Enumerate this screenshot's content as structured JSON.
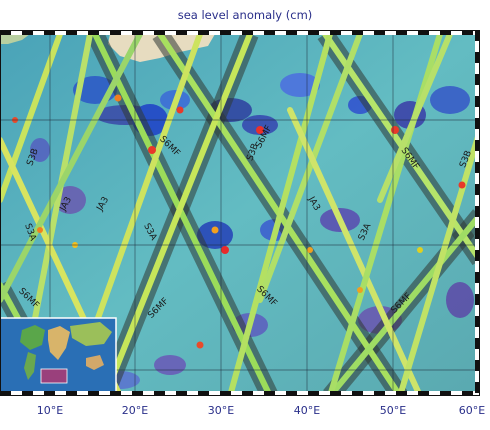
{
  "title": "sea level anomaly (cm)",
  "colors": {
    "ocean": "#5fb7c4",
    "land": "#e7dcc0",
    "track_shadow": "#3a3f3a",
    "grid": "#1d2a3a",
    "label": "#2a2f8a",
    "border_dark": "#111111",
    "border_light": "#ffffff"
  },
  "longitude_labels": [
    "10°E",
    "20°E",
    "30°E",
    "40°E",
    "50°E",
    "60°E"
  ],
  "track_labels": [
    {
      "text": "S3B"
    },
    {
      "text": "JA3"
    },
    {
      "text": "JA3"
    },
    {
      "text": "S3A"
    },
    {
      "text": "S3A"
    },
    {
      "text": "S6MF"
    },
    {
      "text": "S3B"
    },
    {
      "text": "S6MF"
    },
    {
      "text": "JA3"
    },
    {
      "text": "S3A"
    },
    {
      "text": "S6MF"
    },
    {
      "text": "S3B"
    },
    {
      "text": "S6MF"
    },
    {
      "text": "S6MF"
    },
    {
      "text": "S6MF"
    },
    {
      "text": "S6MF"
    }
  ],
  "inset": {
    "name": "world-locator-map",
    "highlight_color": "#c0306a"
  }
}
